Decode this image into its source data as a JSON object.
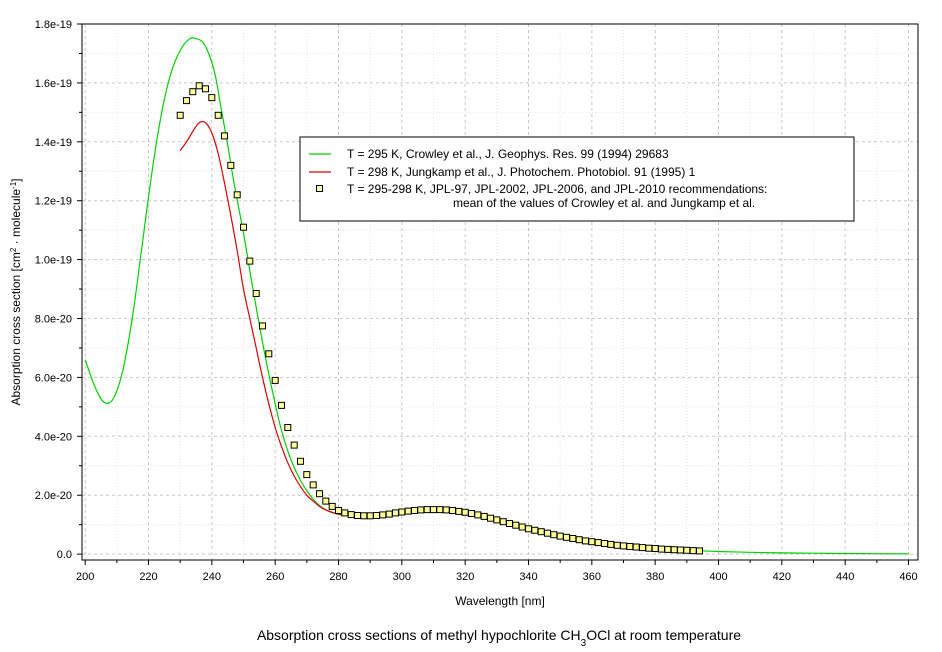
{
  "chart_data": {
    "type": "line",
    "title": "",
    "caption": {
      "prefix": "Absorption cross sections of methyl hypochlorite CH",
      "sub": "3",
      "suffix": "OCl at room temperature"
    },
    "xlabel": "Wavelength [nm]",
    "ylabel": {
      "prefix": "Absorption cross section [cm",
      "sup1": "2",
      "middle": " · molecule",
      "sup2": "-1",
      "suffix": "]"
    },
    "xlim": [
      199,
      463
    ],
    "ylim": [
      -0.2,
      18
    ],
    "y_scale_note": "values in units of 1e-20 cm2 molecule-1",
    "x_ticks": [
      200,
      220,
      240,
      260,
      280,
      300,
      320,
      340,
      360,
      380,
      400,
      420,
      440,
      460
    ],
    "y_ticks": [
      {
        "value": 0,
        "label": "0.0"
      },
      {
        "value": 2,
        "label": "2.0e-20"
      },
      {
        "value": 4,
        "label": "4.0e-20"
      },
      {
        "value": 6,
        "label": "6.0e-20"
      },
      {
        "value": 8,
        "label": "8.0e-20"
      },
      {
        "value": 10,
        "label": "1.0e-19"
      },
      {
        "value": 12,
        "label": "1.2e-19"
      },
      {
        "value": 14,
        "label": "1.4e-19"
      },
      {
        "value": 16,
        "label": "1.6e-19"
      },
      {
        "value": 18,
        "label": "1.8e-19"
      }
    ],
    "grid": true,
    "legend_position": "upper-right",
    "series": [
      {
        "name": "T = 295 K, Crowley et al., J. Geophys. Res. 99 (1994) 29683",
        "style": "line",
        "color": "#00d000",
        "x": [
          200,
          203,
          206,
          209,
          212,
          215,
          218,
          221,
          224,
          227,
          230,
          233,
          235,
          237,
          239,
          241,
          243,
          245,
          247,
          250,
          253,
          256,
          259,
          262,
          265,
          268,
          271,
          274,
          277,
          280,
          283,
          286,
          290,
          295,
          300,
          305,
          310,
          315,
          320,
          325,
          330,
          335,
          340,
          345,
          350,
          355,
          360,
          365,
          370,
          375,
          380,
          385,
          390,
          395,
          400,
          410,
          420,
          430,
          440,
          450,
          460
        ],
        "values": [
          6.6,
          5.7,
          5.15,
          5.3,
          6.3,
          8.1,
          10.5,
          12.9,
          14.9,
          16.3,
          17.1,
          17.5,
          17.5,
          17.4,
          17.0,
          16.3,
          15.1,
          13.9,
          12.6,
          10.9,
          9.0,
          7.2,
          5.6,
          4.2,
          3.2,
          2.5,
          2.0,
          1.65,
          1.45,
          1.35,
          1.3,
          1.3,
          1.32,
          1.4,
          1.48,
          1.52,
          1.52,
          1.48,
          1.4,
          1.28,
          1.14,
          1.0,
          0.86,
          0.74,
          0.62,
          0.52,
          0.43,
          0.36,
          0.29,
          0.24,
          0.19,
          0.16,
          0.13,
          0.11,
          0.09,
          0.06,
          0.04,
          0.03,
          0.02,
          0.015,
          0.01
        ]
      },
      {
        "name": "T = 298 K, Jungkamp et al., J. Photochem. Photobiol. 91 (1995) 1",
        "style": "line",
        "color": "#dd0000",
        "x": [
          230,
          232,
          234,
          236,
          238,
          240,
          242,
          244,
          246,
          248,
          250,
          252,
          254,
          256,
          258,
          260,
          262,
          264,
          266,
          268,
          270,
          272,
          274,
          276,
          278,
          280,
          282,
          284,
          286,
          288,
          290,
          295,
          300,
          305,
          310,
          315,
          320,
          325,
          330,
          335,
          340,
          345,
          350,
          355,
          360,
          365,
          370,
          375,
          380,
          385,
          390,
          395
        ],
        "values": [
          13.7,
          14.0,
          14.35,
          14.65,
          14.65,
          14.3,
          13.6,
          12.6,
          11.5,
          10.3,
          9.0,
          8.0,
          7.0,
          6.0,
          5.1,
          4.3,
          3.65,
          3.1,
          2.65,
          2.3,
          2.0,
          1.8,
          1.62,
          1.5,
          1.42,
          1.36,
          1.32,
          1.3,
          1.29,
          1.29,
          1.3,
          1.36,
          1.43,
          1.48,
          1.5,
          1.47,
          1.4,
          1.29,
          1.16,
          1.02,
          0.88,
          0.75,
          0.63,
          0.53,
          0.44,
          0.36,
          0.29,
          0.23,
          0.19,
          0.16,
          0.13,
          0.11
        ]
      },
      {
        "name": "T = 295-298 K, JPL-97, JPL-2002, JPL-2006, and JPL-2010 recommendations:",
        "name_line2": "mean of the values of Crowley et al. and Jungkamp et al.",
        "style": "markers",
        "color": "#000000",
        "marker_fill": "#ffff99",
        "x": [
          230,
          232,
          234,
          236,
          238,
          240,
          242,
          244,
          246,
          248,
          250,
          252,
          254,
          256,
          258,
          260,
          262,
          264,
          266,
          268,
          270,
          272,
          274,
          276,
          278,
          280,
          282,
          284,
          286,
          288,
          290,
          292,
          294,
          296,
          298,
          300,
          302,
          304,
          306,
          308,
          310,
          312,
          314,
          316,
          318,
          320,
          322,
          324,
          326,
          328,
          330,
          332,
          334,
          336,
          338,
          340,
          342,
          344,
          346,
          348,
          350,
          352,
          354,
          356,
          358,
          360,
          362,
          364,
          366,
          368,
          370,
          372,
          374,
          376,
          378,
          380,
          382,
          384,
          386,
          388,
          390,
          392,
          394
        ],
        "values": [
          14.9,
          15.4,
          15.7,
          15.9,
          15.8,
          15.5,
          14.9,
          14.2,
          13.2,
          12.2,
          11.1,
          9.95,
          8.85,
          7.75,
          6.8,
          5.9,
          5.05,
          4.3,
          3.7,
          3.15,
          2.7,
          2.35,
          2.05,
          1.8,
          1.62,
          1.48,
          1.4,
          1.34,
          1.31,
          1.3,
          1.3,
          1.31,
          1.33,
          1.36,
          1.4,
          1.43,
          1.46,
          1.48,
          1.5,
          1.51,
          1.51,
          1.51,
          1.5,
          1.48,
          1.45,
          1.42,
          1.38,
          1.33,
          1.28,
          1.22,
          1.16,
          1.1,
          1.04,
          0.98,
          0.92,
          0.86,
          0.81,
          0.76,
          0.71,
          0.66,
          0.61,
          0.57,
          0.53,
          0.49,
          0.45,
          0.42,
          0.39,
          0.36,
          0.33,
          0.3,
          0.28,
          0.26,
          0.24,
          0.22,
          0.2,
          0.19,
          0.17,
          0.16,
          0.15,
          0.14,
          0.13,
          0.12,
          0.11
        ]
      }
    ]
  }
}
